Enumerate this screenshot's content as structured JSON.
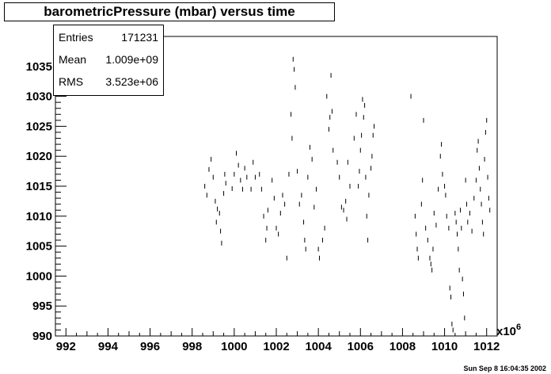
{
  "chart_data": {
    "type": "scatter",
    "title": "barometricPressure (mbar) versus time",
    "xlabel": "",
    "ylabel": "",
    "x_multiplier": "x10",
    "x_multiplier_exp": "6",
    "xlim": [
      991.5,
      1012.5
    ],
    "ylim": [
      990,
      1040
    ],
    "xticks": [
      "992",
      "994",
      "996",
      "998",
      "1000",
      "1002",
      "1004",
      "1006",
      "1008",
      "1010",
      "1012"
    ],
    "yticks": [
      "990",
      "995",
      "1000",
      "1005",
      "1010",
      "1015",
      "1020",
      "1025",
      "1030",
      "1035"
    ],
    "grid": false,
    "series": [
      {
        "points": [
          [
            998.6,
            1015
          ],
          [
            998.7,
            1013.5
          ],
          [
            998.8,
            1017.8
          ],
          [
            998.9,
            1019.5
          ],
          [
            999.0,
            1016.5
          ],
          [
            999.1,
            1012.5
          ],
          [
            999.15,
            1009
          ],
          [
            999.2,
            1011.2
          ],
          [
            999.3,
            1010.5
          ],
          [
            999.35,
            1007.5
          ],
          [
            999.4,
            1005.5
          ],
          [
            999.5,
            1013.8
          ],
          [
            999.55,
            1017
          ],
          [
            999.6,
            1015.5
          ],
          [
            999.9,
            1014.6
          ],
          [
            1000.0,
            1017
          ],
          [
            1000.1,
            1020.5
          ],
          [
            1000.2,
            1018.5
          ],
          [
            1000.3,
            1016
          ],
          [
            1000.4,
            1014.5
          ],
          [
            1000.5,
            1018
          ],
          [
            1000.6,
            1016.5
          ],
          [
            1000.8,
            1014.5
          ],
          [
            1000.9,
            1019
          ],
          [
            1001.0,
            1016.5
          ],
          [
            1001.2,
            1017
          ],
          [
            1001.3,
            1014.5
          ],
          [
            1001.4,
            1010
          ],
          [
            1001.5,
            1006
          ],
          [
            1001.55,
            1008
          ],
          [
            1001.6,
            1011
          ],
          [
            1001.8,
            1016
          ],
          [
            1001.9,
            1013
          ],
          [
            1002.0,
            1008
          ],
          [
            1002.1,
            1007
          ],
          [
            1002.2,
            1010.5
          ],
          [
            1002.3,
            1013.5
          ],
          [
            1002.4,
            1012
          ],
          [
            1002.5,
            1003
          ],
          [
            1002.6,
            1017
          ],
          [
            1002.7,
            1027
          ],
          [
            1002.75,
            1023
          ],
          [
            1002.8,
            1036.2
          ],
          [
            1002.85,
            1034.5
          ],
          [
            1002.9,
            1031.5
          ],
          [
            1003.0,
            1017.5
          ],
          [
            1003.1,
            1012
          ],
          [
            1003.2,
            1013.5
          ],
          [
            1003.3,
            1009
          ],
          [
            1003.35,
            1006
          ],
          [
            1003.4,
            1004.5
          ],
          [
            1003.5,
            1016.5
          ],
          [
            1003.6,
            1021.5
          ],
          [
            1003.7,
            1019.5
          ],
          [
            1003.8,
            1011.5
          ],
          [
            1003.9,
            1014.5
          ],
          [
            1004.0,
            1004.5
          ],
          [
            1004.05,
            1003
          ],
          [
            1004.2,
            1006
          ],
          [
            1004.3,
            1008
          ],
          [
            1004.4,
            1030
          ],
          [
            1004.5,
            1024.5
          ],
          [
            1004.55,
            1026.5
          ],
          [
            1004.6,
            1033.5
          ],
          [
            1004.65,
            1027.5
          ],
          [
            1004.7,
            1021
          ],
          [
            1004.9,
            1019
          ],
          [
            1005.0,
            1016.5
          ],
          [
            1005.1,
            1011.5
          ],
          [
            1005.2,
            1011
          ],
          [
            1005.3,
            1012.5
          ],
          [
            1005.35,
            1009.5
          ],
          [
            1005.4,
            1019
          ],
          [
            1005.5,
            1015
          ],
          [
            1005.7,
            1023
          ],
          [
            1005.8,
            1027
          ],
          [
            1005.9,
            1015
          ],
          [
            1005.95,
            1017.5
          ],
          [
            1006.0,
            1021
          ],
          [
            1006.05,
            1023.5
          ],
          [
            1006.1,
            1029.5
          ],
          [
            1006.15,
            1026.5
          ],
          [
            1006.2,
            1028.5
          ],
          [
            1006.25,
            1016.5
          ],
          [
            1006.3,
            1010
          ],
          [
            1006.35,
            1006
          ],
          [
            1006.4,
            1013.5
          ],
          [
            1006.5,
            1018
          ],
          [
            1006.55,
            1020
          ],
          [
            1006.6,
            1023.5
          ],
          [
            1006.65,
            1025
          ],
          [
            1008.4,
            1030
          ],
          [
            1008.6,
            1010
          ],
          [
            1008.65,
            1007
          ],
          [
            1008.7,
            1004.5
          ],
          [
            1008.75,
            1003
          ],
          [
            1008.9,
            1012
          ],
          [
            1008.95,
            1016
          ],
          [
            1009.0,
            1026
          ],
          [
            1009.1,
            1008
          ],
          [
            1009.2,
            1006
          ],
          [
            1009.3,
            1003
          ],
          [
            1009.35,
            1002
          ],
          [
            1009.4,
            1001
          ],
          [
            1009.45,
            1004.5
          ],
          [
            1009.5,
            1010.5
          ],
          [
            1009.6,
            1008.5
          ],
          [
            1009.7,
            1014.5
          ],
          [
            1009.8,
            1020
          ],
          [
            1009.85,
            1022
          ],
          [
            1009.9,
            1017
          ],
          [
            1010.0,
            1015
          ],
          [
            1010.05,
            1013.5
          ],
          [
            1010.1,
            1010
          ],
          [
            1010.2,
            1008
          ],
          [
            1010.25,
            998
          ],
          [
            1010.3,
            996.5
          ],
          [
            1010.35,
            992
          ],
          [
            1010.4,
            991
          ],
          [
            1010.5,
            1010.5
          ],
          [
            1010.55,
            1009
          ],
          [
            1010.6,
            1007
          ],
          [
            1010.65,
            1004.5
          ],
          [
            1010.7,
            1001
          ],
          [
            1010.75,
            1011
          ],
          [
            1010.8,
            1008
          ],
          [
            1010.85,
            999.5
          ],
          [
            1010.9,
            997
          ],
          [
            1010.95,
            993
          ],
          [
            1011.0,
            1016
          ],
          [
            1011.05,
            1012
          ],
          [
            1011.1,
            1009
          ],
          [
            1011.2,
            1010.5
          ],
          [
            1011.3,
            1007.5
          ],
          [
            1011.4,
            1013
          ],
          [
            1011.5,
            1016
          ],
          [
            1011.55,
            1021
          ],
          [
            1011.6,
            1022.5
          ],
          [
            1011.65,
            1018
          ],
          [
            1011.7,
            1014.5
          ],
          [
            1011.75,
            1012
          ],
          [
            1011.8,
            1009
          ],
          [
            1011.85,
            1007
          ],
          [
            1011.9,
            1019.5
          ],
          [
            1011.95,
            1024
          ],
          [
            1012.0,
            1026
          ],
          [
            1012.05,
            1016.5
          ],
          [
            1012.1,
            1013
          ],
          [
            1012.15,
            1011
          ]
        ]
      }
    ]
  },
  "stats": {
    "rows": [
      {
        "label": "Entries",
        "value": "171231"
      },
      {
        "label": "Mean",
        "value": "1.009e+09"
      },
      {
        "label": "RMS",
        "value": "3.523e+06"
      }
    ]
  },
  "footer": {
    "timestamp": "Sun Sep  8 16:04:35 2002"
  },
  "colors": {
    "marker": "#000000",
    "frame": "#000000",
    "background": "#ffffff"
  }
}
